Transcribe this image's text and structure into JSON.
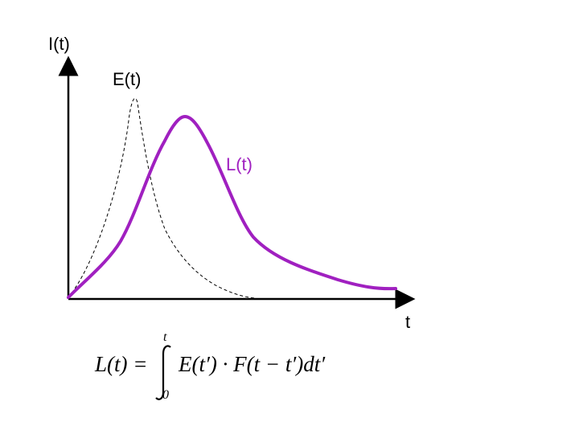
{
  "axes": {
    "y_label": "I(t)",
    "x_label": "t"
  },
  "curves": {
    "excitation": {
      "label": "E(t)",
      "color": "#000000",
      "style": "dashed"
    },
    "luminescence": {
      "label": "L(t)",
      "color": "#a020c0",
      "style": "solid"
    }
  },
  "formula": {
    "lhs": "L(t) =",
    "integral_upper": "t",
    "integral_lower": "0",
    "integrand": "E(t′) · F(t − t′)dt′"
  }
}
